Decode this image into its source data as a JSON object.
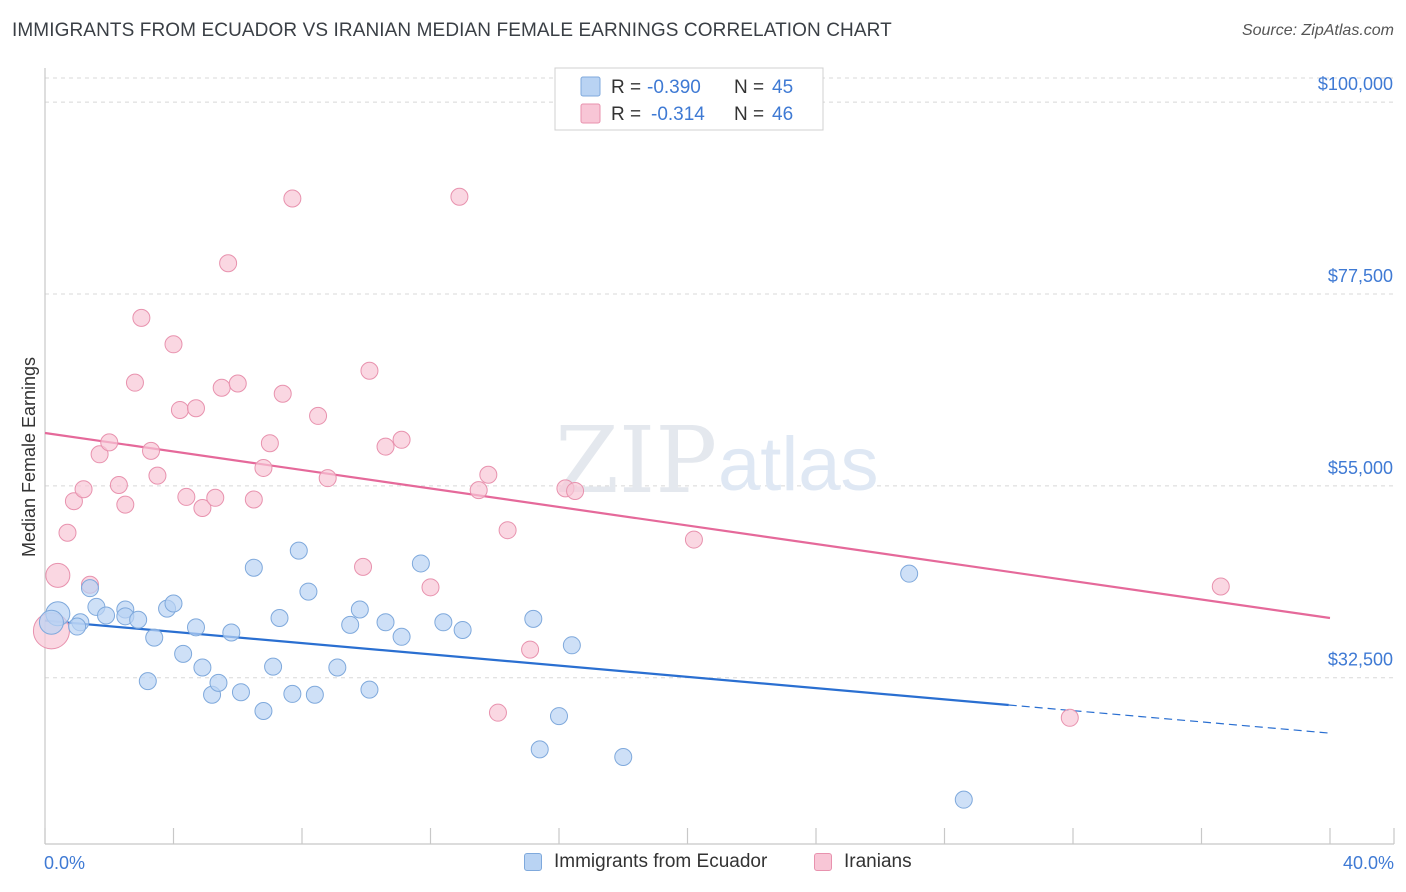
{
  "title": "IMMIGRANTS FROM ECUADOR VS IRANIAN MEDIAN FEMALE EARNINGS CORRELATION CHART",
  "source": "Source: ZipAtlas.com",
  "watermark": {
    "zip": "ZIP",
    "atlas": "atlas"
  },
  "colors": {
    "blue_fill": "#b9d3f3",
    "blue_stroke": "#7fa9dc",
    "blue_line": "#2a6fd1",
    "pink_fill": "#f8c6d6",
    "pink_stroke": "#e892ae",
    "pink_line": "#e5699a",
    "tick_label": "#3f7ad4",
    "grid": "#d8d8d8"
  },
  "legend_stats": [
    {
      "series": "blue",
      "r_label": "R =",
      "r_value": "-0.390",
      "n_label": "N =",
      "n_value": "45"
    },
    {
      "series": "pink",
      "r_label": "R =",
      "r_value": "-0.314",
      "n_label": "N =",
      "n_value": "46"
    }
  ],
  "chart_data": {
    "type": "scatter",
    "title": "IMMIGRANTS FROM ECUADOR VS IRANIAN MEDIAN FEMALE EARNINGS CORRELATION CHART",
    "xlabel": "",
    "ylabel": "Median Female Earnings",
    "xlim": [
      0,
      40
    ],
    "ylim": [
      13000,
      104000
    ],
    "x_tick_labels": [
      "0.0%",
      "40.0%"
    ],
    "y_ticks": [
      32500,
      55000,
      77500,
      100000
    ],
    "y_tick_labels": [
      "$32,500",
      "$55,000",
      "$77,500",
      "$100,000"
    ],
    "grid": true,
    "legend_position": "bottom",
    "series": [
      {
        "name": "Immigrants from Ecuador",
        "color": "blue",
        "trend": {
          "x": [
            0,
            30
          ],
          "y": [
            39200,
            29300
          ],
          "dashed_to_x": 40,
          "dashed_to_y": 26000
        },
        "points": [
          [
            0.4,
            40000
          ],
          [
            0.2,
            39000
          ],
          [
            1.1,
            39000
          ],
          [
            1.0,
            38500
          ],
          [
            1.4,
            43000
          ],
          [
            1.6,
            40800
          ],
          [
            1.9,
            39800
          ],
          [
            2.5,
            40500
          ],
          [
            2.5,
            39700
          ],
          [
            2.9,
            39300
          ],
          [
            3.2,
            32100
          ],
          [
            3.4,
            37200
          ],
          [
            3.8,
            40600
          ],
          [
            4.0,
            41200
          ],
          [
            4.3,
            35300
          ],
          [
            4.7,
            38400
          ],
          [
            4.9,
            33700
          ],
          [
            5.2,
            30500
          ],
          [
            5.4,
            31900
          ],
          [
            5.8,
            37800
          ],
          [
            6.1,
            30800
          ],
          [
            6.5,
            45400
          ],
          [
            6.8,
            28600
          ],
          [
            7.1,
            33800
          ],
          [
            7.3,
            39500
          ],
          [
            7.7,
            30600
          ],
          [
            7.9,
            47400
          ],
          [
            8.2,
            42600
          ],
          [
            8.4,
            30500
          ],
          [
            9.1,
            33700
          ],
          [
            9.5,
            38700
          ],
          [
            9.8,
            40500
          ],
          [
            10.1,
            31100
          ],
          [
            10.6,
            39000
          ],
          [
            11.1,
            37300
          ],
          [
            11.7,
            45900
          ],
          [
            12.4,
            39000
          ],
          [
            13.0,
            38100
          ],
          [
            15.2,
            39400
          ],
          [
            15.4,
            24100
          ],
          [
            16.0,
            28000
          ],
          [
            16.4,
            36300
          ],
          [
            18.0,
            23200
          ],
          [
            26.9,
            44700
          ],
          [
            28.6,
            18200
          ]
        ]
      },
      {
        "name": "Iranians",
        "color": "pink",
        "trend": {
          "x": [
            0,
            40
          ],
          "y": [
            61200,
            39500
          ]
        },
        "points": [
          [
            0.4,
            44500
          ],
          [
            0.2,
            38000
          ],
          [
            0.7,
            49500
          ],
          [
            0.9,
            53200
          ],
          [
            1.2,
            54600
          ],
          [
            1.4,
            43400
          ],
          [
            1.7,
            58700
          ],
          [
            2.0,
            60100
          ],
          [
            2.3,
            55100
          ],
          [
            2.5,
            52800
          ],
          [
            2.8,
            67100
          ],
          [
            3.0,
            74700
          ],
          [
            3.3,
            59100
          ],
          [
            3.5,
            56200
          ],
          [
            4.0,
            71600
          ],
          [
            4.2,
            63900
          ],
          [
            4.4,
            53700
          ],
          [
            4.7,
            64100
          ],
          [
            4.9,
            52400
          ],
          [
            5.3,
            53600
          ],
          [
            5.5,
            66500
          ],
          [
            5.7,
            81100
          ],
          [
            6.0,
            67000
          ],
          [
            6.5,
            53400
          ],
          [
            6.8,
            57100
          ],
          [
            7.0,
            60000
          ],
          [
            7.4,
            65800
          ],
          [
            7.7,
            88700
          ],
          [
            8.5,
            63200
          ],
          [
            8.8,
            55900
          ],
          [
            9.9,
            45500
          ],
          [
            10.1,
            68500
          ],
          [
            10.6,
            59600
          ],
          [
            11.1,
            60400
          ],
          [
            12.0,
            43100
          ],
          [
            12.9,
            88900
          ],
          [
            13.5,
            54500
          ],
          [
            13.8,
            56300
          ],
          [
            14.1,
            28400
          ],
          [
            14.4,
            49800
          ],
          [
            15.1,
            35800
          ],
          [
            16.2,
            54700
          ],
          [
            16.5,
            54400
          ],
          [
            20.2,
            48700
          ],
          [
            31.9,
            27800
          ],
          [
            36.6,
            43200
          ]
        ]
      }
    ]
  }
}
